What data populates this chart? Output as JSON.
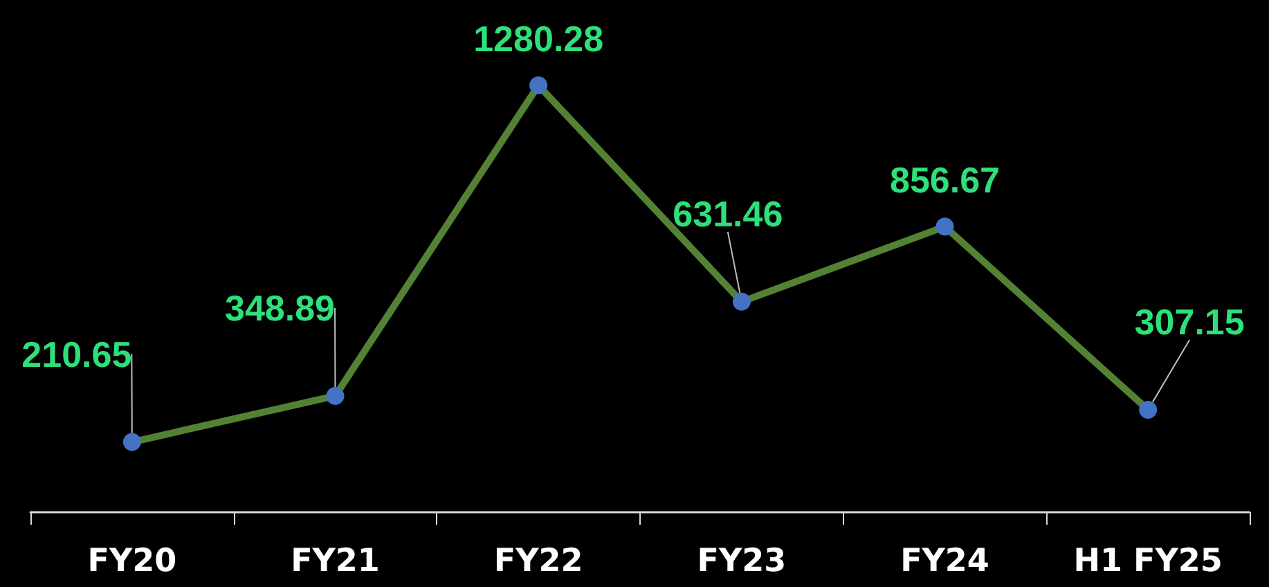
{
  "chart_data": {
    "type": "line",
    "categories": [
      "FY20",
      "FY21",
      "FY22",
      "FY23",
      "FY24",
      "H1 FY25"
    ],
    "series": [
      {
        "color": "#548235",
        "values": [
          210.65,
          348.89,
          1280.28,
          631.46,
          856.67,
          307.15
        ]
      }
    ],
    "data_labels": true,
    "marker": "circle",
    "line_style": "solid"
  }
}
